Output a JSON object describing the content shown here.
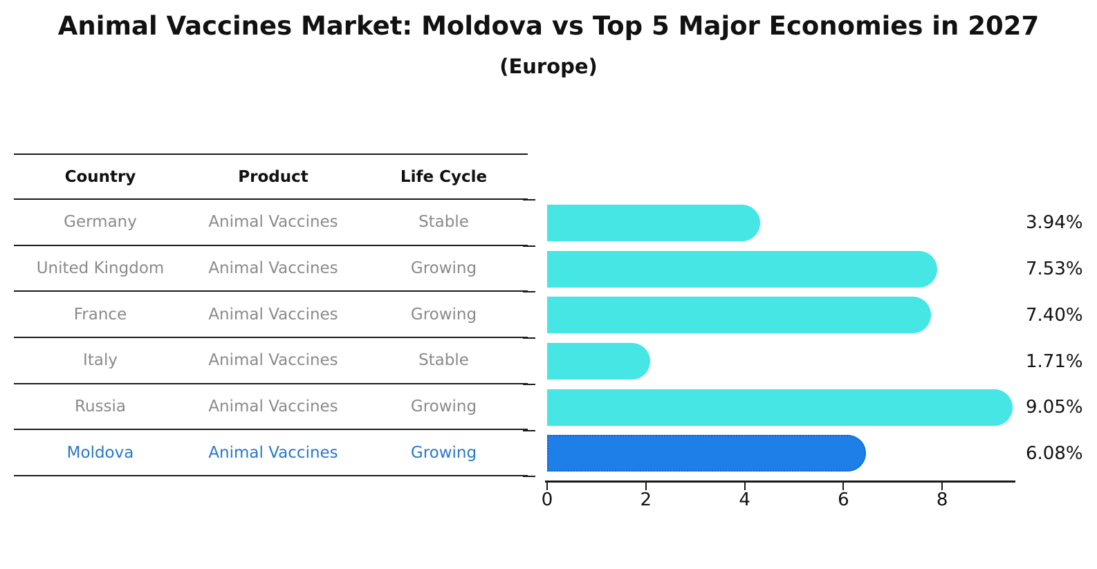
{
  "title": "Animal Vaccines Market: Moldova vs Top 5 Major Economies in 2027",
  "subtitle": "(Europe)",
  "table": {
    "headers": [
      "Country",
      "Product",
      "Life Cycle"
    ],
    "rows": [
      {
        "country": "Germany",
        "product": "Animal Vaccines",
        "life_cycle": "Stable",
        "highlighted": false
      },
      {
        "country": "United Kingdom",
        "product": "Animal Vaccines",
        "life_cycle": "Growing",
        "highlighted": false
      },
      {
        "country": "France",
        "product": "Animal Vaccines",
        "life_cycle": "Growing",
        "highlighted": false
      },
      {
        "country": "Italy",
        "product": "Animal Vaccines",
        "life_cycle": "Stable",
        "highlighted": false
      },
      {
        "country": "Russia",
        "product": "Animal Vaccines",
        "life_cycle": "Growing",
        "highlighted": false
      },
      {
        "country": "Moldova",
        "product": "Animal Vaccines",
        "life_cycle": "Growing",
        "highlighted": true
      }
    ]
  },
  "chart_data": {
    "type": "bar",
    "orientation": "horizontal",
    "title": "Animal Vaccines Market: Moldova vs Top 5 Major Economies in 2027 (Europe)",
    "categories": [
      "Germany",
      "United Kingdom",
      "France",
      "Italy",
      "Russia",
      "Moldova"
    ],
    "values": [
      3.94,
      7.53,
      7.4,
      1.71,
      9.05,
      6.08
    ],
    "value_labels": [
      "3.94%",
      "7.53%",
      "7.40%",
      "1.71%",
      "9.05%",
      "6.08%"
    ],
    "xlim": [
      0,
      9.48
    ],
    "x_ticks": [
      0,
      2,
      4,
      6,
      8
    ],
    "grid": false,
    "legend": "none",
    "bar_color": "#45e6e3",
    "highlight_index": 5,
    "highlight_color": "#1e7fe8",
    "highlight_border_color": "#1563cc"
  },
  "colors": {
    "text_primary": "#111111",
    "text_muted": "#8a8a8a",
    "highlight_text": "#2878c8",
    "rule": "#1a1a1a"
  }
}
